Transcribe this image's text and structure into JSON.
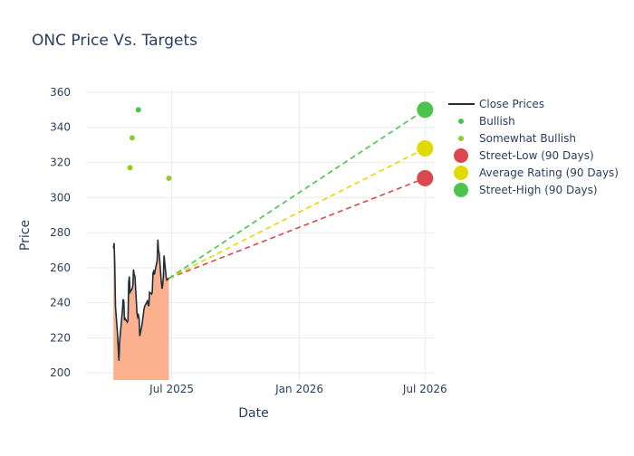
{
  "chart_data": {
    "type": "line",
    "title": "ONC Price Vs. Targets",
    "xlabel": "Date",
    "ylabel": "Price",
    "x_ticks": [
      "Jul 2025",
      "Jan 2026",
      "Jul 2026"
    ],
    "y_ticks": [
      200,
      220,
      240,
      260,
      280,
      300,
      320,
      340,
      360
    ],
    "xlim": [
      "2025-02-08",
      "2026-07-15"
    ],
    "ylim": [
      196,
      361
    ],
    "grid": true,
    "legend_position": "right",
    "series": [
      {
        "name": "Close Prices",
        "kind": "line",
        "color": "#1f2d3d",
        "fill_color": "#fcb18e",
        "points": [
          [
            "2025-04-08",
            271
          ],
          [
            "2025-04-09",
            274
          ],
          [
            "2025-04-10",
            262
          ],
          [
            "2025-04-11",
            238
          ],
          [
            "2025-04-14",
            222
          ],
          [
            "2025-04-15",
            214
          ],
          [
            "2025-04-16",
            207
          ],
          [
            "2025-04-17",
            218
          ],
          [
            "2025-04-21",
            236
          ],
          [
            "2025-04-22",
            242
          ],
          [
            "2025-04-23",
            241
          ],
          [
            "2025-04-24",
            230
          ],
          [
            "2025-04-25",
            231
          ],
          [
            "2025-04-28",
            229
          ],
          [
            "2025-04-29",
            230
          ],
          [
            "2025-04-30",
            252
          ],
          [
            "2025-05-01",
            255
          ],
          [
            "2025-05-02",
            246
          ],
          [
            "2025-05-05",
            248
          ],
          [
            "2025-05-06",
            250
          ],
          [
            "2025-05-07",
            259
          ],
          [
            "2025-05-08",
            256
          ],
          [
            "2025-05-09",
            255
          ],
          [
            "2025-05-12",
            234
          ],
          [
            "2025-05-13",
            232
          ],
          [
            "2025-05-14",
            233
          ],
          [
            "2025-05-15",
            231
          ],
          [
            "2025-05-16",
            221
          ],
          [
            "2025-05-19",
            227
          ],
          [
            "2025-05-20",
            230
          ],
          [
            "2025-05-21",
            233
          ],
          [
            "2025-05-22",
            236
          ],
          [
            "2025-05-23",
            238
          ],
          [
            "2025-05-27",
            241
          ],
          [
            "2025-05-28",
            239
          ],
          [
            "2025-05-29",
            238
          ],
          [
            "2025-05-30",
            246
          ],
          [
            "2025-06-02",
            245
          ],
          [
            "2025-06-03",
            246
          ],
          [
            "2025-06-04",
            257
          ],
          [
            "2025-06-05",
            258
          ],
          [
            "2025-06-06",
            256
          ],
          [
            "2025-06-09",
            262
          ],
          [
            "2025-06-10",
            264
          ],
          [
            "2025-06-11",
            276
          ],
          [
            "2025-06-12",
            270
          ],
          [
            "2025-06-13",
            268
          ],
          [
            "2025-06-16",
            252
          ],
          [
            "2025-06-17",
            248
          ],
          [
            "2025-06-18",
            250
          ],
          [
            "2025-06-19",
            255
          ],
          [
            "2025-06-20",
            267
          ],
          [
            "2025-06-23",
            255
          ],
          [
            "2025-06-24",
            253
          ],
          [
            "2025-06-27",
            254
          ]
        ]
      },
      {
        "name": "Bullish",
        "kind": "markers",
        "color": "#4cc34c",
        "points": [
          [
            "2025-05-14",
            350
          ]
        ]
      },
      {
        "name": "Somewhat Bullish",
        "kind": "markers",
        "color": "#8fcb2f",
        "points": [
          [
            "2025-05-02",
            317
          ],
          [
            "2025-05-05",
            334
          ],
          [
            "2025-06-27",
            311
          ]
        ]
      },
      {
        "name": "Street-Low (90 Days)",
        "kind": "target",
        "color": "#d9484d",
        "from": [
          "2025-06-27",
          254
        ],
        "to": [
          "2026-07-01",
          311
        ]
      },
      {
        "name": "Average Rating (90 Days)",
        "kind": "target",
        "color": "#e2d900",
        "from": [
          "2025-06-27",
          254
        ],
        "to": [
          "2026-07-01",
          328
        ]
      },
      {
        "name": "Street-High (90 Days)",
        "kind": "target",
        "color": "#4cc34c",
        "from": [
          "2025-06-27",
          254
        ],
        "to": [
          "2026-07-01",
          350
        ]
      }
    ]
  }
}
